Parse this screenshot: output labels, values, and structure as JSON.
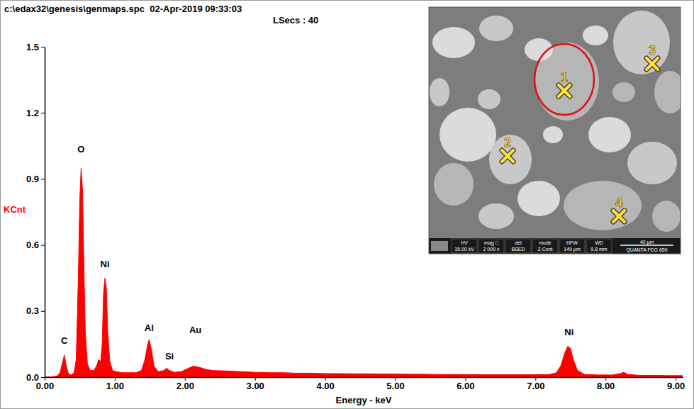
{
  "chart_data": {
    "type": "area",
    "title": "c:\\edax32\\genesis\\genmaps.spc  02-Apr-2019 09:33:03",
    "subtitle": "LSecs : 40",
    "x_label": "Energy - keV",
    "y_label": "KCnt",
    "color": "#ff0000",
    "grid": false,
    "x": [
      0.0,
      0.1,
      0.18,
      0.22,
      0.25,
      0.28,
      0.31,
      0.34,
      0.38,
      0.42,
      0.45,
      0.48,
      0.5,
      0.52,
      0.54,
      0.56,
      0.58,
      0.61,
      0.65,
      0.7,
      0.74,
      0.77,
      0.8,
      0.82,
      0.84,
      0.86,
      0.88,
      0.9,
      0.93,
      0.97,
      1.02,
      1.1,
      1.2,
      1.3,
      1.38,
      1.43,
      1.47,
      1.49,
      1.52,
      1.56,
      1.62,
      1.7,
      1.74,
      1.78,
      1.85,
      1.95,
      2.05,
      2.12,
      2.2,
      2.3,
      2.4,
      2.6,
      2.8,
      3.0,
      3.2,
      3.4,
      3.6,
      3.8,
      4.0,
      4.2,
      4.4,
      4.6,
      4.8,
      5.0,
      5.2,
      5.4,
      5.6,
      5.8,
      6.0,
      6.2,
      6.4,
      6.6,
      6.8,
      7.0,
      7.2,
      7.3,
      7.36,
      7.42,
      7.46,
      7.5,
      7.54,
      7.6,
      7.7,
      7.9,
      8.1,
      8.2,
      8.26,
      8.32,
      8.5,
      8.7,
      8.9,
      9.1
    ],
    "values": [
      0.0,
      0.0,
      0.005,
      0.02,
      0.06,
      0.1,
      0.05,
      0.015,
      0.01,
      0.02,
      0.08,
      0.45,
      0.8,
      0.95,
      0.85,
      0.5,
      0.2,
      0.06,
      0.03,
      0.03,
      0.05,
      0.08,
      0.07,
      0.15,
      0.38,
      0.45,
      0.4,
      0.2,
      0.07,
      0.03,
      0.025,
      0.02,
      0.02,
      0.02,
      0.03,
      0.08,
      0.15,
      0.17,
      0.13,
      0.05,
      0.025,
      0.03,
      0.04,
      0.03,
      0.022,
      0.025,
      0.04,
      0.05,
      0.045,
      0.035,
      0.03,
      0.028,
      0.025,
      0.022,
      0.02,
      0.02,
      0.018,
      0.018,
      0.016,
      0.016,
      0.015,
      0.015,
      0.014,
      0.014,
      0.013,
      0.013,
      0.012,
      0.012,
      0.012,
      0.011,
      0.011,
      0.011,
      0.011,
      0.011,
      0.012,
      0.02,
      0.05,
      0.11,
      0.14,
      0.13,
      0.08,
      0.03,
      0.012,
      0.01,
      0.01,
      0.015,
      0.022,
      0.012,
      0.008,
      0.008,
      0.007,
      0.007
    ],
    "xlim": [
      0,
      9.1
    ],
    "xticks": [
      {
        "value": 0,
        "label": "0.00"
      },
      {
        "value": 1,
        "label": "1.00"
      },
      {
        "value": 2,
        "label": "2.00"
      },
      {
        "value": 3,
        "label": "3.00"
      },
      {
        "value": 4,
        "label": "4.00"
      },
      {
        "value": 5,
        "label": "5.00"
      },
      {
        "value": 6,
        "label": "6.00"
      },
      {
        "value": 7,
        "label": "7.00"
      },
      {
        "value": 8,
        "label": "8.00"
      },
      {
        "value": 9,
        "label": "9.00"
      }
    ],
    "ylim": [
      0,
      1.5
    ],
    "yticks": [
      {
        "value": 0,
        "label": "0.0"
      },
      0.3,
      0.6,
      0.9,
      1.2,
      1.5
    ],
    "annotations": [
      {
        "text": "C",
        "x": 0.28,
        "y": 0.15
      },
      {
        "text": "O",
        "x": 0.52,
        "y": 1.02
      },
      {
        "text": "Ni",
        "x": 0.86,
        "y": 0.5
      },
      {
        "text": "Al",
        "x": 1.49,
        "y": 0.21
      },
      {
        "text": "Si",
        "x": 1.78,
        "y": 0.08
      },
      {
        "text": "Au",
        "x": 2.15,
        "y": 0.2
      },
      {
        "text": "Ni",
        "x": 7.48,
        "y": 0.19
      }
    ]
  },
  "inset": {
    "points": [
      "1",
      "2",
      "3",
      "4"
    ],
    "info": [
      {
        "label": "HV",
        "value": "15.00 kV"
      },
      {
        "label": "mag □",
        "value": "2 000 x"
      },
      {
        "label": "det",
        "value": "BSED"
      },
      {
        "label": "mode",
        "value": "Z Cont"
      },
      {
        "label": "HFW",
        "value": "149 µm"
      },
      {
        "label": "WD",
        "value": "9.8 mm"
      }
    ],
    "scale_bar": "40 µm",
    "instrument": "QUANTA FEG 650"
  }
}
